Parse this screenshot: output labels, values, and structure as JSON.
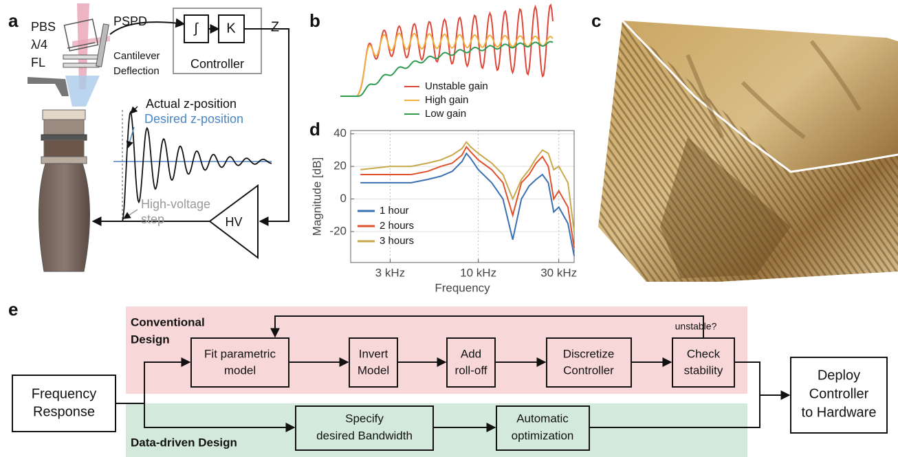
{
  "panel_labels": [
    "a",
    "b",
    "c",
    "d",
    "e"
  ],
  "panel_a": {
    "pbs": "PBS",
    "quarter_wave": "λ/4",
    "fl": "FL",
    "pspd": "PSPD",
    "cantilever": [
      "Cantilever",
      "Deflection"
    ],
    "integrator": "∫",
    "gain": "K",
    "controller": "Controller",
    "z": "Z",
    "actual": "Actual z-position",
    "desired": "Desired z-position",
    "step": [
      "High-voltage",
      "step"
    ],
    "hv": "HV"
  },
  "panel_b": {
    "legend": [
      "Unstable gain",
      "High gain",
      "Low gain"
    ]
  },
  "chart_data": {
    "type": "line",
    "xlabel": "Frequency",
    "ylabel": "Magnitude [dB]",
    "xscale": "log",
    "grid": true,
    "xlim": [
      1750,
      37000
    ],
    "ylim": [
      -39,
      42
    ],
    "xticks": [
      {
        "value": 3000,
        "label": "3 kHz"
      },
      {
        "value": 10000,
        "label": "10 kHz"
      },
      {
        "value": 30000,
        "label": "30 kHz"
      }
    ],
    "yticks": [
      -20,
      0,
      20,
      40
    ],
    "x": [
      2000,
      3000,
      4000,
      5000,
      6000,
      7000,
      8000,
      8500,
      9000,
      10000,
      12000,
      14000,
      16000,
      18000,
      20000,
      22000,
      24000,
      26000,
      28000,
      30000,
      34000,
      37000
    ],
    "series": [
      {
        "name": "1 hour",
        "color": "#3a6fb0",
        "values": [
          10,
          10,
          10,
          12,
          14,
          17,
          23,
          28,
          25,
          18,
          10,
          0,
          -25,
          0,
          8,
          12,
          15,
          10,
          -8,
          -5,
          -15,
          -35
        ]
      },
      {
        "name": "2 hours",
        "color": "#e0502a",
        "values": [
          15,
          15,
          15,
          17,
          20,
          22,
          27,
          32,
          29,
          24,
          18,
          10,
          -10,
          10,
          15,
          22,
          26,
          20,
          0,
          5,
          -5,
          -30
        ]
      },
      {
        "name": "3 hours",
        "color": "#c8a84a",
        "values": [
          18,
          20,
          20,
          22,
          24,
          27,
          31,
          35,
          32,
          28,
          22,
          15,
          0,
          12,
          18,
          25,
          30,
          28,
          18,
          20,
          10,
          -20
        ]
      }
    ]
  },
  "panel_e": {
    "conventional": [
      "Conventional",
      "Design"
    ],
    "data_driven": "Data-driven Design",
    "unstable": "unstable?",
    "input": [
      "Frequency",
      "Response"
    ],
    "conventional_steps": [
      [
        "Fit parametric",
        "model"
      ],
      [
        "Invert",
        "Model"
      ],
      [
        "Add",
        "roll-off"
      ],
      [
        "Discretize",
        "Controller"
      ],
      [
        "Check",
        "stability"
      ]
    ],
    "data_driven_steps": [
      [
        "Specify",
        "desired Bandwidth"
      ],
      [
        "Automatic",
        "optimization"
      ]
    ],
    "output": [
      "Deploy",
      "Controller",
      "to Hardware"
    ]
  }
}
